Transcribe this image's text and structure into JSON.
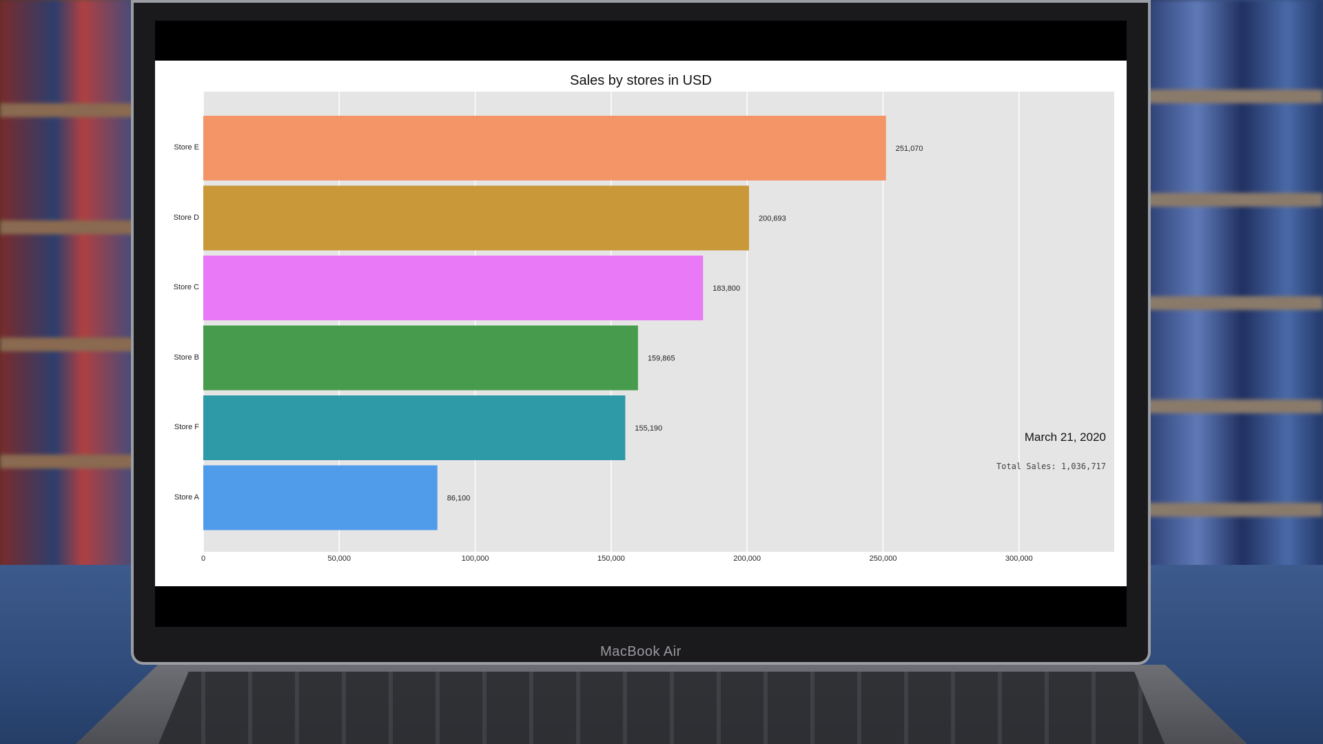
{
  "device": {
    "brand_label": "MacBook Air"
  },
  "chart_data": {
    "type": "bar",
    "orientation": "horizontal",
    "title": "Sales by stores in USD",
    "categories": [
      "Store E",
      "Store D",
      "Store C",
      "Store B",
      "Store F",
      "Store A"
    ],
    "values": [
      251070,
      200693,
      183800,
      159865,
      155190,
      86100
    ],
    "value_labels": [
      "251,070",
      "200,693",
      "183,800",
      "159,865",
      "155,190",
      "86,100"
    ],
    "colors": [
      "#f39566",
      "#c99839",
      "#ea79f7",
      "#469c4c",
      "#2e9aa8",
      "#519cea"
    ],
    "xlim": [
      0,
      335000
    ],
    "xticks": [
      0,
      50000,
      100000,
      150000,
      200000,
      250000,
      300000
    ],
    "xtick_labels": [
      "0",
      "50,000",
      "100,000",
      "150,000",
      "200,000",
      "250,000",
      "300,000"
    ],
    "grid": true,
    "annotations": {
      "date": "March 21, 2020",
      "total": "Total Sales: 1,036,717"
    }
  }
}
